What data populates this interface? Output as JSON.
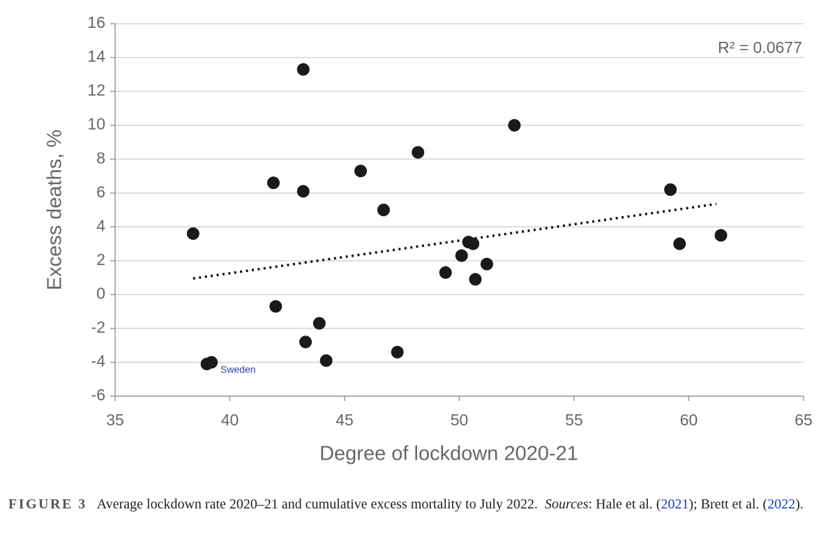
{
  "chart_data": {
    "type": "scatter",
    "x": [
      38.4,
      39.0,
      39.2,
      41.9,
      42.0,
      43.2,
      43.2,
      43.3,
      43.9,
      44.2,
      45.7,
      46.7,
      47.3,
      48.2,
      49.4,
      50.1,
      50.4,
      50.6,
      50.7,
      51.2,
      52.4,
      59.2,
      59.6,
      61.4
    ],
    "values": [
      3.6,
      -4.1,
      -4.0,
      6.6,
      -0.7,
      13.3,
      6.1,
      -2.8,
      -1.7,
      -3.9,
      7.3,
      5.0,
      -3.4,
      8.4,
      1.3,
      2.3,
      3.1,
      3.0,
      0.9,
      1.8,
      10.0,
      6.2,
      3.0,
      3.5
    ],
    "color": "#1a1a1a",
    "trendline": {
      "x": [
        38.4,
        61.2
      ],
      "values": [
        0.95,
        5.35
      ]
    },
    "xlabel": "Degree of lockdown 2020-21",
    "ylabel": "Excess deaths, %",
    "xlim": [
      35,
      65
    ],
    "xticks": [
      35,
      40,
      45,
      50,
      55,
      60,
      65
    ],
    "ylim": [
      -6,
      16
    ],
    "yticks": [
      -6,
      -4,
      -2,
      0,
      2,
      4,
      6,
      8,
      10,
      12,
      14,
      16
    ],
    "grid": true,
    "annotations": [
      "R² = 0.0677",
      "Sweden"
    ]
  },
  "caption": {
    "label": "FIGURE 3",
    "text": "Average lockdown rate 2020–21 and cumulative excess mortality to July 2022.",
    "sources_label": "Sources",
    "parts": [
      ": Hale et al. (",
      "2021",
      "); Brett et al. (",
      "2022",
      ")."
    ]
  }
}
